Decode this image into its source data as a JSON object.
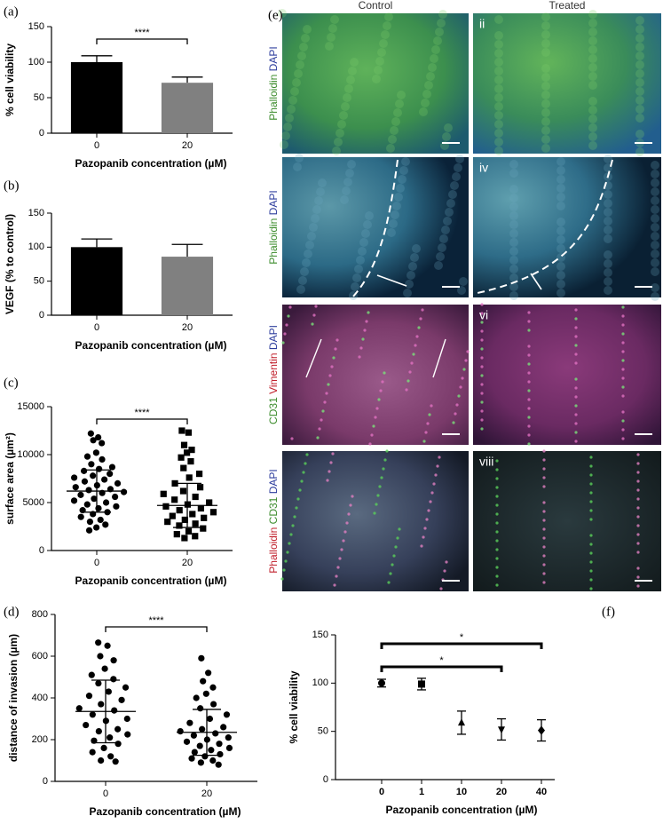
{
  "chart_data": [
    {
      "type": "bar",
      "panel_label": "(a)",
      "ylabel": "% cell viability",
      "xlabel": "Pazopanib concentration (µM)",
      "categories": [
        "0",
        "20"
      ],
      "values": [
        100,
        71
      ],
      "errors": [
        9,
        8
      ],
      "colors": [
        "#000000",
        "#808080"
      ],
      "ylim": [
        0,
        150
      ],
      "yticks": [
        0,
        50,
        100,
        150
      ],
      "annotations": [
        {
          "text": "****",
          "between": [
            "0",
            "20"
          ]
        }
      ]
    },
    {
      "type": "bar",
      "panel_label": "(b)",
      "ylabel": "VEGF (% to control)",
      "xlabel": "Pazopanib concentration (µM)",
      "categories": [
        "0",
        "20"
      ],
      "values": [
        100,
        86
      ],
      "errors": [
        12,
        18
      ],
      "colors": [
        "#000000",
        "#808080"
      ],
      "ylim": [
        0,
        150
      ],
      "yticks": [
        0,
        50,
        100,
        150
      ],
      "annotations": []
    },
    {
      "type": "scatter",
      "panel_label": "(c)",
      "ylabel": "surface area (µm²)",
      "xlabel": "Pazopanib concentration (µM)",
      "categories": [
        "0",
        "20"
      ],
      "series": [
        {
          "marker": "circle",
          "color": "#000000",
          "values": [
            12200,
            11800,
            11500,
            11200,
            10200,
            9800,
            9500,
            9000,
            8700,
            8500,
            8300,
            8000,
            7800,
            7600,
            7400,
            7200,
            7000,
            6800,
            6600,
            6400,
            6300,
            6100,
            6000,
            5800,
            5600,
            5400,
            5200,
            5000,
            4800,
            4600,
            4400,
            4200,
            4000,
            3800,
            3500,
            3200,
            3000,
            2700,
            2400,
            2100
          ]
        },
        {
          "marker": "square",
          "color": "#000000",
          "values": [
            12500,
            12300,
            11000,
            10500,
            10200,
            9700,
            9300,
            8600,
            8000,
            7600,
            7000,
            6600,
            6200,
            5900,
            5600,
            5300,
            5000,
            4800,
            4600,
            4400,
            4200,
            4000,
            3800,
            3600,
            3400,
            3200,
            3000,
            2800,
            2600,
            2300,
            2000,
            1700,
            1500,
            1300
          ]
        }
      ],
      "mean": [
        6200,
        4700
      ],
      "sd": [
        2200,
        2300
      ],
      "ylim": [
        0,
        15000
      ],
      "yticks": [
        0,
        5000,
        10000,
        15000
      ],
      "annotations": [
        {
          "text": "****",
          "between": [
            "0",
            "20"
          ]
        }
      ]
    },
    {
      "type": "scatter",
      "panel_label": "(d)",
      "ylabel": "distance of invasion (µm)",
      "xlabel": "Pazopanib concentration (µM)",
      "categories": [
        "0",
        "20"
      ],
      "series": [
        {
          "marker": "circle",
          "color": "#000000",
          "values": [
            665,
            650,
            600,
            580,
            540,
            510,
            490,
            470,
            450,
            430,
            410,
            390,
            370,
            350,
            340,
            320,
            300,
            290,
            270,
            250,
            240,
            225,
            210,
            195,
            180,
            160,
            140,
            120,
            100,
            95
          ]
        },
        {
          "marker": "circle",
          "color": "#000000",
          "values": [
            590,
            520,
            480,
            450,
            420,
            400,
            370,
            350,
            320,
            300,
            280,
            260,
            250,
            240,
            230,
            220,
            210,
            200,
            190,
            180,
            170,
            160,
            150,
            140,
            130,
            120,
            110,
            100,
            90,
            80
          ]
        }
      ],
      "mean": [
        335,
        235
      ],
      "sd": [
        150,
        110
      ],
      "ylim": [
        0,
        800
      ],
      "yticks": [
        0,
        200,
        400,
        600,
        800
      ],
      "annotations": [
        {
          "text": "****",
          "between": [
            "0",
            "20"
          ]
        }
      ]
    },
    {
      "type": "errorbar",
      "panel_label": "(f)",
      "ylabel": "% cell viability",
      "xlabel": "Pazopanib concentration (µM)",
      "categories": [
        "0",
        "1",
        "10",
        "20",
        "40"
      ],
      "values": [
        100,
        99,
        59,
        52,
        51
      ],
      "errors": [
        4,
        6,
        12,
        11,
        11
      ],
      "markers": [
        "circle",
        "square",
        "triangle",
        "triangle-down",
        "diamond"
      ],
      "color": "#000000",
      "ylim": [
        0,
        150
      ],
      "yticks": [
        0,
        50,
        100,
        150
      ],
      "annotations": [
        {
          "text": "*",
          "between": [
            "0",
            "40"
          ]
        },
        {
          "text": "*",
          "between": [
            "0",
            "20"
          ]
        }
      ]
    }
  ],
  "image_panel": {
    "panel_label": "(e)",
    "columns": [
      "Control",
      "Treated"
    ],
    "rows": [
      {
        "numeral": "ii",
        "stains": [
          {
            "text": "Phalloidin",
            "color": "#3c8c2c"
          },
          {
            "text": "DAPI",
            "color": "#2c3c9c"
          }
        ]
      },
      {
        "numeral": "iv",
        "stains": [
          {
            "text": "Phalloidin",
            "color": "#3c8c2c"
          },
          {
            "text": "DAPI",
            "color": "#2c3c9c"
          }
        ]
      },
      {
        "numeral": "vi",
        "stains": [
          {
            "text": "CD31",
            "color": "#3c8c2c"
          },
          {
            "text": "Vimentin",
            "color": "#c0202c"
          },
          {
            "text": "DAPI",
            "color": "#2c3c9c"
          }
        ]
      },
      {
        "numeral": "viii",
        "stains": [
          {
            "text": "Phalloidin",
            "color": "#c0202c"
          },
          {
            "text": "CD31",
            "color": "#3c8c2c"
          },
          {
            "text": "DAPI",
            "color": "#2c3c9c"
          }
        ]
      }
    ]
  }
}
